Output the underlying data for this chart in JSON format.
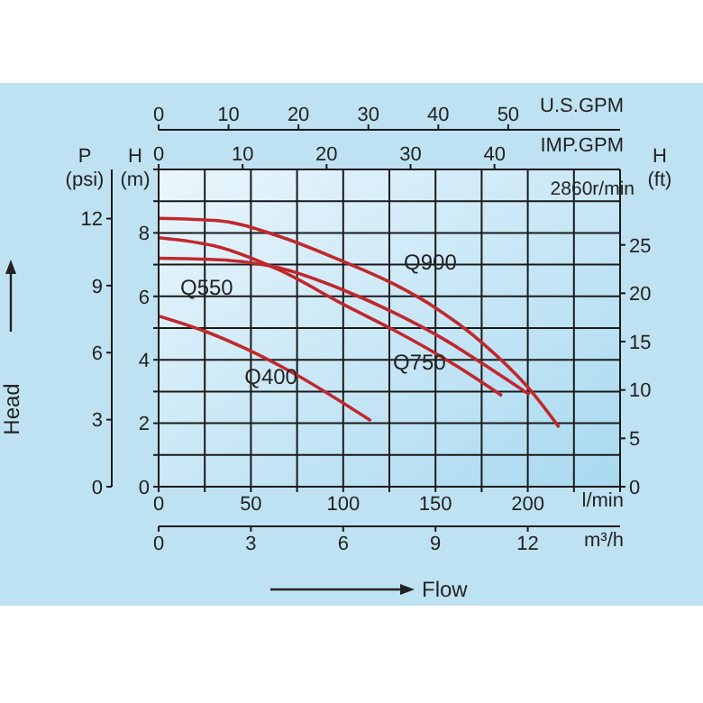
{
  "chart_data": {
    "type": "line",
    "xlabel": "l/min",
    "x2label": "U.S.GPM",
    "ylabel": "H (m)",
    "y2label": "H (ft)",
    "y3label": "P (psi)",
    "annotations": [
      "2860r/min",
      "Head",
      "Flow",
      "IMP.GPM",
      "0",
      "10",
      "20",
      "30",
      "40",
      "m³/h",
      "0",
      "3",
      "6",
      "9",
      "12"
    ],
    "legend": false,
    "xlim": [
      0,
      250
    ],
    "xticks": [
      0,
      {
        "value": 25,
        "label": null
      },
      50,
      {
        "value": 75,
        "label": null
      },
      100,
      {
        "value": 125,
        "label": null
      },
      150,
      {
        "value": 175,
        "label": null
      },
      200,
      {
        "value": 225,
        "label": null
      },
      {
        "value": 250,
        "label": null
      }
    ],
    "x2lim": [
      0,
      66
    ],
    "x2ticks": [
      0,
      10,
      20,
      30,
      40,
      50
    ],
    "ylim": [
      0,
      10
    ],
    "yticks": [
      0,
      {
        "value": 1,
        "label": null
      },
      2,
      {
        "value": 3,
        "label": null
      },
      4,
      {
        "value": 5,
        "label": null
      },
      6,
      {
        "value": 7,
        "label": null
      },
      8,
      {
        "value": 9,
        "label": null
      },
      {
        "value": 10,
        "label": null
      }
    ],
    "y2lim": [
      0,
      32.8
    ],
    "y2ticks": [
      0,
      5,
      10,
      15,
      20,
      25
    ],
    "y3lim": [
      0,
      14.2
    ],
    "y3ticks": [
      0,
      3,
      6,
      9,
      12
    ],
    "grid": true,
    "marker": "none",
    "line_style": "solid",
    "series": [
      {
        "name": "Q900",
        "color": "#c0282d",
        "x": [
          0,
          33,
          65,
          100,
          127,
          151,
          175,
          201,
          217
        ],
        "values": [
          8.46,
          8.38,
          7.9,
          7.1,
          6.4,
          5.6,
          4.55,
          3.07,
          1.87
        ]
      },
      {
        "name": "Q550",
        "color": "#c0282d",
        "x": [
          0,
          33,
          65,
          100,
          127,
          156,
          175,
          201
        ],
        "values": [
          7.2,
          7.15,
          6.9,
          6.2,
          5.5,
          4.6,
          3.9,
          2.9
        ]
      },
      {
        "name": "Q750",
        "color": "#c0282d",
        "x": [
          0,
          33,
          65,
          100,
          127,
          156,
          186
        ],
        "values": [
          7.85,
          7.55,
          6.84,
          5.75,
          4.95,
          4.0,
          2.87
        ]
      },
      {
        "name": "Q400",
        "color": "#c0282d",
        "x": [
          0,
          25,
          46.5,
          73,
          115
        ],
        "values": [
          5.38,
          4.9,
          4.37,
          3.58,
          2.08
        ]
      }
    ]
  }
}
